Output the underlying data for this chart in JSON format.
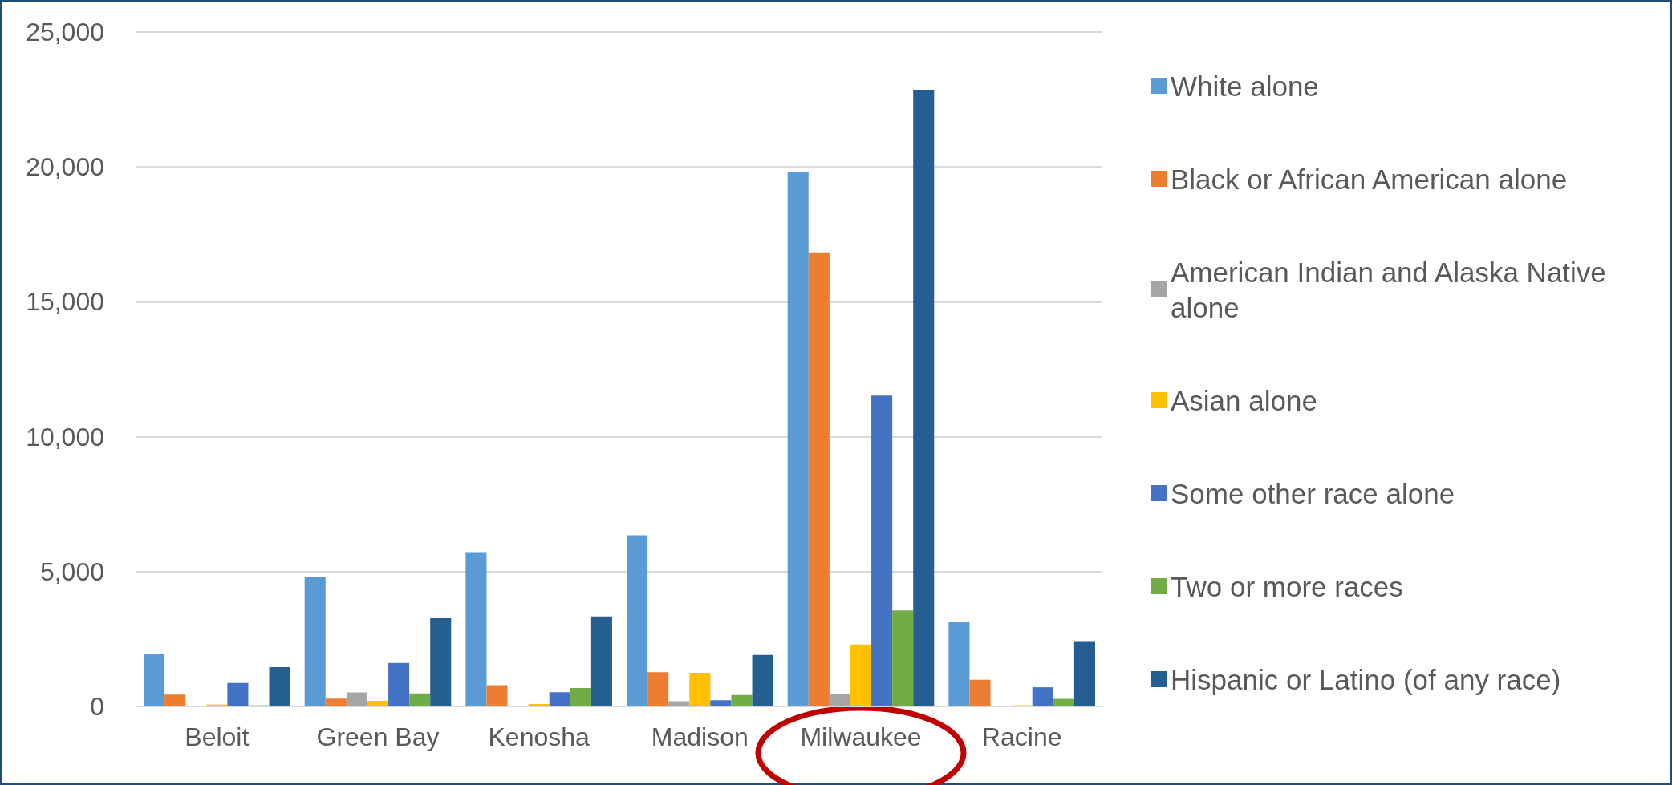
{
  "chart_data": {
    "type": "bar",
    "categories": [
      "Beloit",
      "Green Bay",
      "Kenosha",
      "Madison",
      "Milwaukee",
      "Racine"
    ],
    "series": [
      {
        "name": "White alone",
        "color": "#5b9bd5",
        "values": [
          1930,
          4790,
          5690,
          6350,
          19800,
          3120
        ]
      },
      {
        "name": "Black or African American alone",
        "color": "#ed7d31",
        "values": [
          440,
          290,
          790,
          1270,
          16830,
          990
        ]
      },
      {
        "name": "American Indian and Alaska Native alone",
        "color": "#a5a5a5",
        "values": [
          0,
          520,
          0,
          190,
          460,
          0
        ]
      },
      {
        "name": "Asian alone",
        "color": "#ffc000",
        "values": [
          70,
          210,
          90,
          1250,
          2300,
          40
        ]
      },
      {
        "name": "Some other race alone",
        "color": "#4472c4",
        "values": [
          870,
          1610,
          530,
          230,
          11530,
          710
        ]
      },
      {
        "name": "Two or more races",
        "color": "#70ad47",
        "values": [
          40,
          480,
          680,
          426,
          3560,
          280
        ]
      },
      {
        "name": "Hispanic or Latino (of any race)",
        "color": "#255e91",
        "values": [
          1460,
          3270,
          3340,
          1910,
          22860,
          2390
        ]
      }
    ],
    "ylim": [
      0,
      25000
    ],
    "yticks": [
      0,
      {
        "value": 5000,
        "label": "5,000"
      },
      {
        "value": 10000,
        "label": "10,000"
      },
      {
        "value": 15000,
        "label": "15,000"
      },
      {
        "value": 20000,
        "label": "20,000"
      },
      {
        "value": 25000,
        "label": "25,000"
      }
    ],
    "grid": "y",
    "legend": "right"
  }
}
